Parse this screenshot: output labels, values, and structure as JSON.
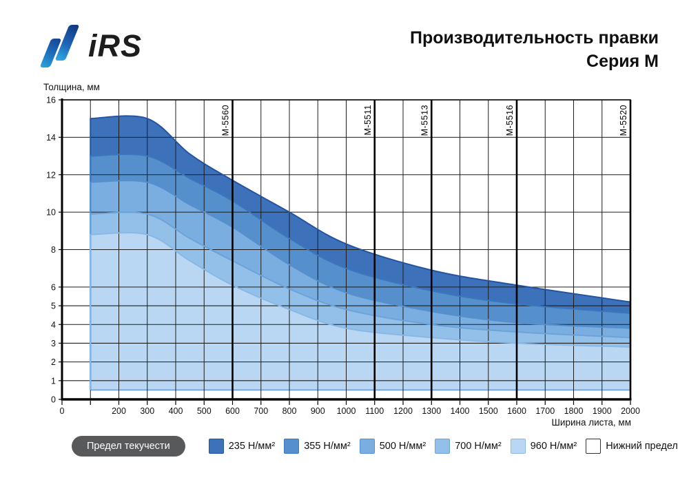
{
  "header": {
    "logo_text": "iRS",
    "title_line1": "Производительность правки",
    "title_line2": "Серия М"
  },
  "chart_data": {
    "type": "area",
    "title": "Производительность правки Серия М",
    "xlabel": "Ширина листа, мм",
    "ylabel": "Толщина, мм",
    "xlim": [
      0,
      2000
    ],
    "ylim": [
      0,
      16
    ],
    "x_gridline_step": 100,
    "x_tick_labels": [
      0,
      200,
      300,
      400,
      500,
      600,
      700,
      800,
      900,
      1000,
      1100,
      1200,
      1300,
      1400,
      1500,
      1600,
      1700,
      1800,
      1900,
      2000
    ],
    "y_ticks": [
      0,
      1,
      2,
      3,
      4,
      5,
      6,
      8,
      10,
      12,
      14,
      16
    ],
    "grid": true,
    "lower_limit": 0.5,
    "lower_limit_label": "Нижний предел",
    "lower_limit_line_color": "#74a7db",
    "machine_lines": [
      {
        "label": "М-5560",
        "x": 600
      },
      {
        "label": "М-5511",
        "x": 1100
      },
      {
        "label": "М-5513",
        "x": 1300
      },
      {
        "label": "М-5516",
        "x": 1600
      },
      {
        "label": "М-5520",
        "x": 2000
      }
    ],
    "series": [
      {
        "name": "235 Н/мм²",
        "fill": "#3d72ba",
        "stroke": "#24549f",
        "points": [
          [
            100,
            15
          ],
          [
            300,
            15
          ],
          [
            450,
            13.1
          ],
          [
            600,
            11.7
          ],
          [
            800,
            10.0
          ],
          [
            1000,
            8.3
          ],
          [
            1300,
            6.9
          ],
          [
            1600,
            6.1
          ],
          [
            2000,
            5.2
          ]
        ]
      },
      {
        "name": "355 Н/мм²",
        "fill": "#5590cd",
        "stroke": "#3a77bd",
        "points": [
          [
            100,
            13
          ],
          [
            300,
            13
          ],
          [
            450,
            11.8
          ],
          [
            600,
            10.6
          ],
          [
            800,
            8.6
          ],
          [
            1000,
            7.0
          ],
          [
            1300,
            5.8
          ],
          [
            1600,
            5.1
          ],
          [
            2000,
            4.6
          ]
        ]
      },
      {
        "name": "500 Н/мм²",
        "fill": "#7aade0",
        "stroke": "#5590cd",
        "points": [
          [
            100,
            11.6
          ],
          [
            300,
            11.6
          ],
          [
            450,
            10.4
          ],
          [
            600,
            9.2
          ],
          [
            800,
            7.2
          ],
          [
            1000,
            5.7
          ],
          [
            1300,
            4.7
          ],
          [
            1600,
            4.1
          ],
          [
            2000,
            3.8
          ]
        ]
      },
      {
        "name": "700 Н/мм²",
        "fill": "#93c0e8",
        "stroke": "#6da3d8",
        "points": [
          [
            100,
            9.9
          ],
          [
            300,
            9.9
          ],
          [
            450,
            8.6
          ],
          [
            600,
            7.4
          ],
          [
            800,
            5.9
          ],
          [
            1000,
            4.8
          ],
          [
            1300,
            4.0
          ],
          [
            1600,
            3.6
          ],
          [
            2000,
            3.3
          ]
        ]
      },
      {
        "name": "960 Н/мм²",
        "fill": "#b9d7f2",
        "stroke": "#8ab8e6",
        "points": [
          [
            100,
            8.8
          ],
          [
            300,
            8.8
          ],
          [
            450,
            7.4
          ],
          [
            600,
            6.1
          ],
          [
            800,
            4.8
          ],
          [
            1000,
            3.8
          ],
          [
            1300,
            3.3
          ],
          [
            1600,
            3.0
          ],
          [
            2000,
            2.8
          ]
        ]
      }
    ],
    "legend_position": "bottom"
  },
  "legend": {
    "pill_label": "Предел текучести",
    "items": [
      {
        "label": "235 Н/мм²",
        "color": "#3d72ba",
        "border": "#24549f"
      },
      {
        "label": "355 Н/мм²",
        "color": "#5590cd",
        "border": "#3a77bd"
      },
      {
        "label": "500 Н/мм²",
        "color": "#7aade0",
        "border": "#5590cd"
      },
      {
        "label": "700 Н/мм²",
        "color": "#93c0e8",
        "border": "#6da3d8"
      },
      {
        "label": "960 Н/мм²",
        "color": "#b9d7f2",
        "border": "#8ab8e6"
      },
      {
        "label": "Нижний предел",
        "color": "#ffffff",
        "border": "#333333"
      }
    ]
  }
}
